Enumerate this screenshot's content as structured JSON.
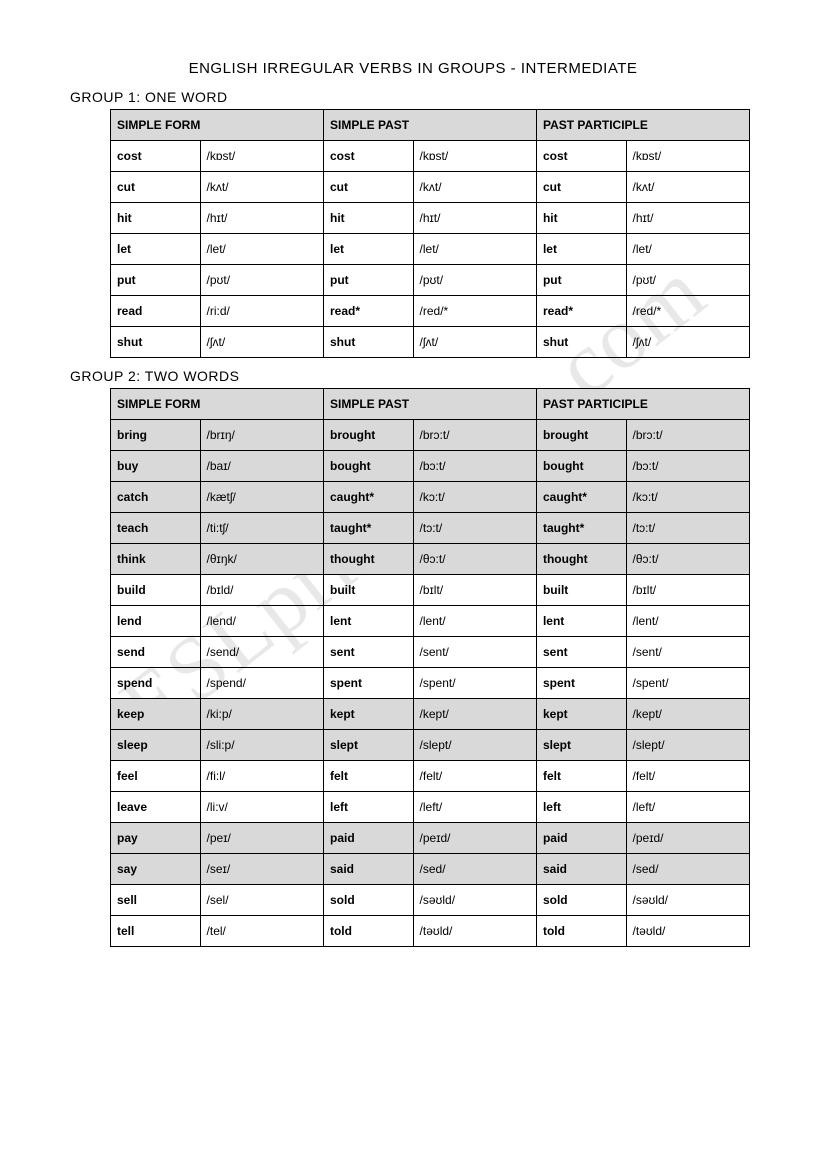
{
  "title": "ENGLISH IRREGULAR VERBS IN GROUPS - INTERMEDIATE",
  "watermark": "ESLprintables.com",
  "headers": {
    "simple_form": "SIMPLE FORM",
    "simple_past": "SIMPLE PAST",
    "past_participle": "PAST PARTICIPLE"
  },
  "group1": {
    "title": "GROUP 1: ONE WORD",
    "rows": [
      {
        "sf": "cost",
        "sf_ipa": "/kɒst/",
        "sp": "cost",
        "sp_ipa": "/kɒst/",
        "pp": "cost",
        "pp_ipa": "/kɒst/",
        "shade": false
      },
      {
        "sf": "cut",
        "sf_ipa": "/kʌt/",
        "sp": "cut",
        "sp_ipa": "/kʌt/",
        "pp": "cut",
        "pp_ipa": "/kʌt/",
        "shade": false
      },
      {
        "sf": "hit",
        "sf_ipa": "/hɪt/",
        "sp": "hit",
        "sp_ipa": "/hɪt/",
        "pp": "hit",
        "pp_ipa": "/hɪt/",
        "shade": false
      },
      {
        "sf": "let",
        "sf_ipa": "/let/",
        "sp": "let",
        "sp_ipa": "/let/",
        "pp": "let",
        "pp_ipa": "/let/",
        "shade": false
      },
      {
        "sf": "put",
        "sf_ipa": "/pʊt/",
        "sp": "put",
        "sp_ipa": "/pʊt/",
        "pp": "put",
        "pp_ipa": "/pʊt/",
        "shade": false
      },
      {
        "sf": "read",
        "sf_ipa": "/ri:d/",
        "sp": "read*",
        "sp_ipa": "/red/*",
        "pp": "read*",
        "pp_ipa": "/red/*",
        "shade": false
      },
      {
        "sf": "shut",
        "sf_ipa": "/ʃʌt/",
        "sp": "shut",
        "sp_ipa": "/ʃʌt/",
        "pp": "shut",
        "pp_ipa": "/ʃʌt/",
        "shade": false
      }
    ]
  },
  "group2": {
    "title": "GROUP 2: TWO WORDS",
    "rows": [
      {
        "sf": "bring",
        "sf_ipa": "/brɪŋ/",
        "sp": "brought",
        "sp_ipa": "/brɔ:t/",
        "pp": "brought",
        "pp_ipa": "/brɔ:t/",
        "shade": true
      },
      {
        "sf": "buy",
        "sf_ipa": "/baɪ/",
        "sp": "bought",
        "sp_ipa": "/bɔ:t/",
        "pp": "bought",
        "pp_ipa": "/bɔ:t/",
        "shade": true
      },
      {
        "sf": "catch",
        "sf_ipa": "/kætʃ/",
        "sp": "caught*",
        "sp_ipa": "/kɔ:t/",
        "pp": "caught*",
        "pp_ipa": "/kɔ:t/",
        "shade": true
      },
      {
        "sf": "teach",
        "sf_ipa": "/ti:tʃ/",
        "sp": "taught*",
        "sp_ipa": "/tɔ:t/",
        "pp": "taught*",
        "pp_ipa": "/tɔ:t/",
        "shade": true
      },
      {
        "sf": "think",
        "sf_ipa": "/θɪŋk/",
        "sp": "thought",
        "sp_ipa": "/θɔ:t/",
        "pp": "thought",
        "pp_ipa": "/θɔ:t/",
        "shade": true
      },
      {
        "sf": "build",
        "sf_ipa": "/bɪld/",
        "sp": "built",
        "sp_ipa": "/bɪlt/",
        "pp": "built",
        "pp_ipa": "/bɪlt/",
        "shade": false
      },
      {
        "sf": "lend",
        "sf_ipa": "/lend/",
        "sp": "lent",
        "sp_ipa": "/lent/",
        "pp": "lent",
        "pp_ipa": "/lent/",
        "shade": false
      },
      {
        "sf": "send",
        "sf_ipa": "/send/",
        "sp": "sent",
        "sp_ipa": "/sent/",
        "pp": "sent",
        "pp_ipa": "/sent/",
        "shade": false
      },
      {
        "sf": "spend",
        "sf_ipa": "/spend/",
        "sp": "spent",
        "sp_ipa": "/spent/",
        "pp": "spent",
        "pp_ipa": "/spent/",
        "shade": false
      },
      {
        "sf": "keep",
        "sf_ipa": "/ki:p/",
        "sp": "kept",
        "sp_ipa": "/kept/",
        "pp": "kept",
        "pp_ipa": "/kept/",
        "shade": true
      },
      {
        "sf": "sleep",
        "sf_ipa": "/sli:p/",
        "sp": "slept",
        "sp_ipa": "/slept/",
        "pp": "slept",
        "pp_ipa": "/slept/",
        "shade": true
      },
      {
        "sf": "feel",
        "sf_ipa": "/fi:l/",
        "sp": "felt",
        "sp_ipa": "/felt/",
        "pp": "felt",
        "pp_ipa": "/felt/",
        "shade": false
      },
      {
        "sf": "leave",
        "sf_ipa": "/li:v/",
        "sp": "left",
        "sp_ipa": "/left/",
        "pp": "left",
        "pp_ipa": "/left/",
        "shade": false
      },
      {
        "sf": "pay",
        "sf_ipa": "/peɪ/",
        "sp": "paid",
        "sp_ipa": "/peɪd/",
        "pp": "paid",
        "pp_ipa": "/peɪd/",
        "shade": true
      },
      {
        "sf": "say",
        "sf_ipa": "/seɪ/",
        "sp": "said",
        "sp_ipa": "/sed/",
        "pp": "said",
        "pp_ipa": "/sed/",
        "shade": true
      },
      {
        "sf": "sell",
        "sf_ipa": "/sel/",
        "sp": "sold",
        "sp_ipa": "/səʊld/",
        "pp": "sold",
        "pp_ipa": "/səʊld/",
        "shade": false
      },
      {
        "sf": "tell",
        "sf_ipa": "/tel/",
        "sp": "told",
        "sp_ipa": "/təʊld/",
        "pp": "told",
        "pp_ipa": "/təʊld/",
        "shade": false
      }
    ]
  }
}
